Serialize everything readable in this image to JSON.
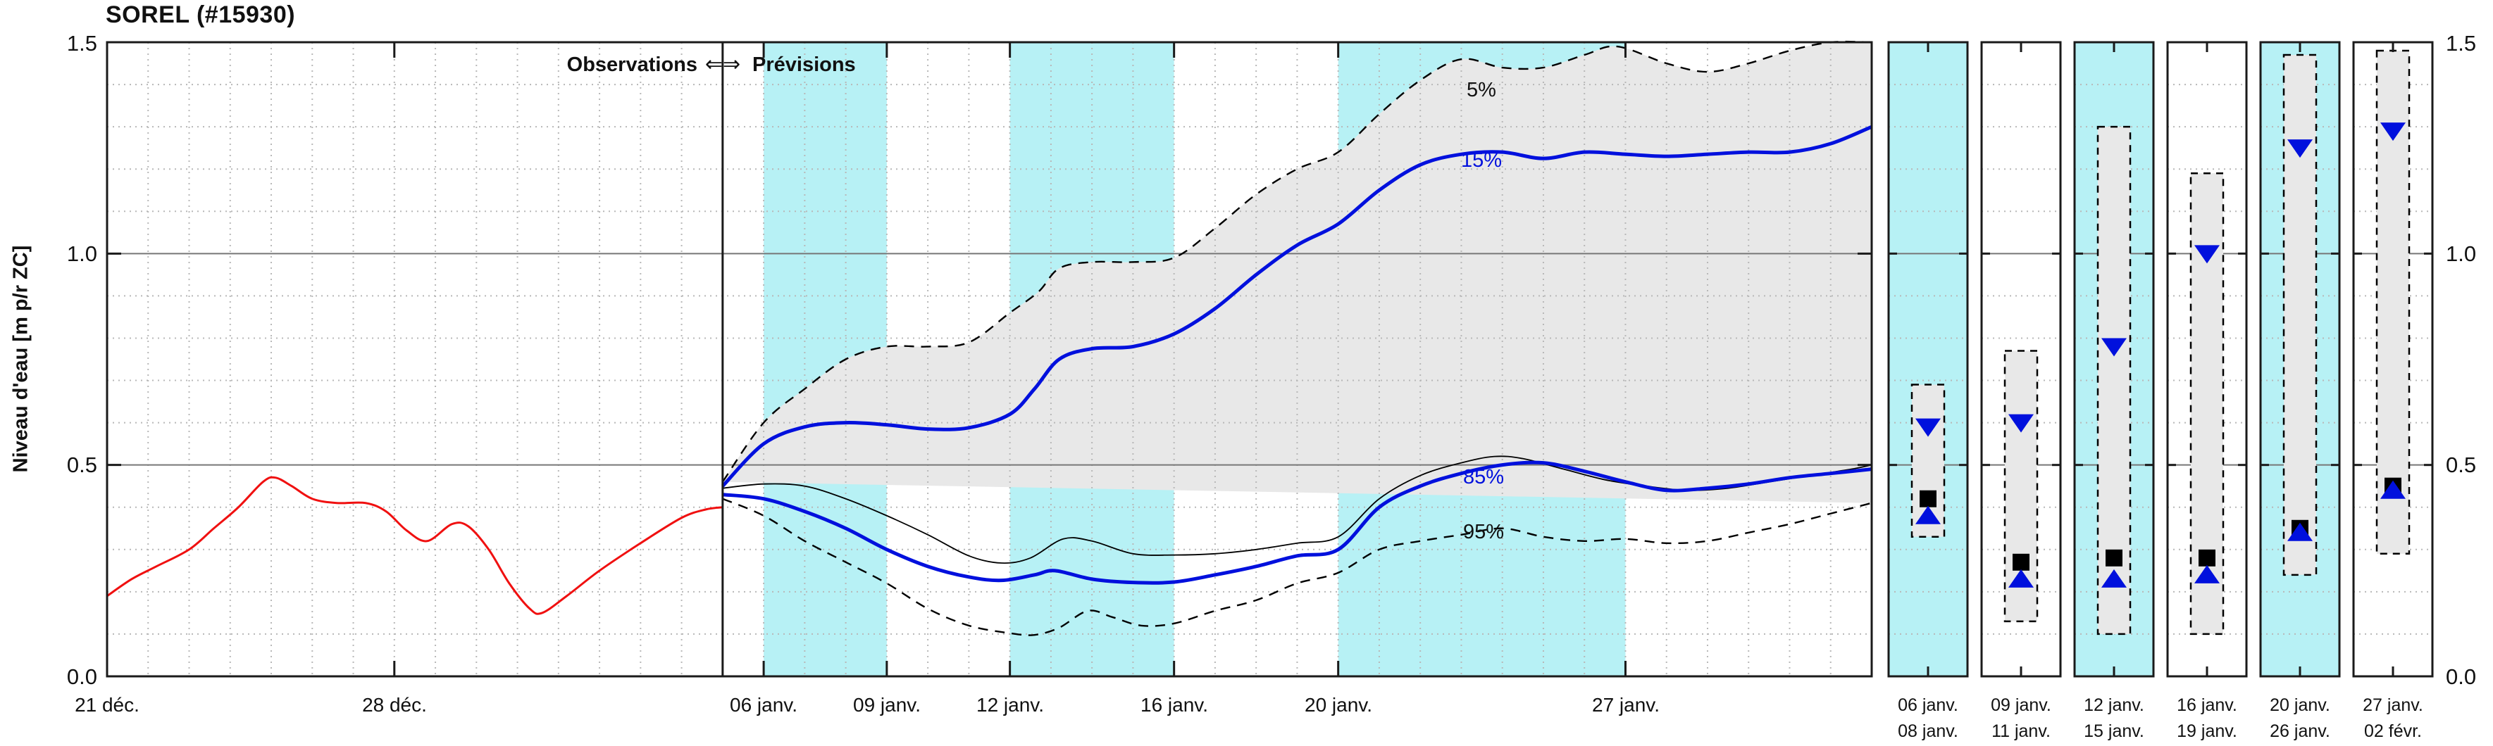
{
  "title": "SOREL (#15930)",
  "header": {
    "left": "Observations",
    "arrows": "⇐⇒",
    "right": "Prévisions"
  },
  "y_axis": {
    "label": "Niveau d'eau [m p/r ZC]",
    "ticks": [
      "0.0",
      "0.5",
      "1.0",
      "1.5"
    ],
    "min": 0.0,
    "max": 1.5
  },
  "curve_labels": {
    "p5": "5%",
    "p15": "15%",
    "p85": "85%",
    "p95": "95%"
  },
  "colors": {
    "observation": "#f01010",
    "quantile_blue": "#0010dd",
    "quantile_black": "#000000",
    "band_fill": "#e8e8e8",
    "highlight_fill": "#b7f1f5",
    "grid_minor": "#b8b8b8",
    "grid_major": "#777777",
    "axis": "#1a1a1a"
  },
  "chart_data": {
    "type": "line",
    "title": "SOREL (#15930)",
    "ylabel": "Niveau d'eau [m p/r ZC]",
    "ylim": [
      0.0,
      1.5
    ],
    "x_unit": "days since 21 déc.",
    "x_range_days": 43,
    "forecast_start_day": 15,
    "grid": "minor dotted 0.1 steps + daily vertical; solid lines at 0.5 and 1.0",
    "xticks": [
      {
        "day": 0,
        "label": "21 déc."
      },
      {
        "day": 7,
        "label": "28 déc."
      },
      {
        "day": 16,
        "label": "06 janv."
      },
      {
        "day": 19,
        "label": "09 janv."
      },
      {
        "day": 22,
        "label": "12 janv."
      },
      {
        "day": 26,
        "label": "16 janv."
      },
      {
        "day": 30,
        "label": "20 janv."
      },
      {
        "day": 37,
        "label": "27 janv."
      }
    ],
    "boundary_tick_days": [
      7,
      16,
      19,
      22,
      26,
      30,
      37
    ],
    "highlight_bands_days": [
      [
        16,
        19
      ],
      [
        22,
        26
      ],
      [
        30,
        37
      ]
    ],
    "uncertainty_band": {
      "upper": "5%",
      "lower": "95%"
    },
    "series": [
      {
        "name": "observations",
        "color": "#f01010",
        "style": "solid",
        "width": 3,
        "points": [
          [
            0,
            0.19
          ],
          [
            0.6,
            0.23
          ],
          [
            1.2,
            0.26
          ],
          [
            2,
            0.3
          ],
          [
            2.6,
            0.35
          ],
          [
            3.2,
            0.4
          ],
          [
            3.8,
            0.46
          ],
          [
            4.1,
            0.47
          ],
          [
            4.5,
            0.45
          ],
          [
            5,
            0.42
          ],
          [
            5.6,
            0.41
          ],
          [
            6.3,
            0.41
          ],
          [
            6.8,
            0.39
          ],
          [
            7.3,
            0.345
          ],
          [
            7.8,
            0.32
          ],
          [
            8.4,
            0.36
          ],
          [
            8.8,
            0.355
          ],
          [
            9.3,
            0.3
          ],
          [
            9.8,
            0.22
          ],
          [
            10.3,
            0.16
          ],
          [
            10.6,
            0.15
          ],
          [
            11.2,
            0.19
          ],
          [
            12,
            0.25
          ],
          [
            13,
            0.315
          ],
          [
            14,
            0.375
          ],
          [
            14.6,
            0.395
          ],
          [
            15,
            0.4
          ]
        ]
      },
      {
        "name": "5%",
        "color": "#000000",
        "style": "dashed",
        "width": 2.4,
        "points": [
          [
            15,
            0.46
          ],
          [
            16,
            0.6
          ],
          [
            17,
            0.68
          ],
          [
            18,
            0.75
          ],
          [
            19,
            0.78
          ],
          [
            20,
            0.78
          ],
          [
            21,
            0.79
          ],
          [
            22,
            0.86
          ],
          [
            22.7,
            0.91
          ],
          [
            23.2,
            0.965
          ],
          [
            24,
            0.98
          ],
          [
            25,
            0.98
          ],
          [
            26,
            0.99
          ],
          [
            27,
            1.06
          ],
          [
            28,
            1.14
          ],
          [
            29,
            1.2
          ],
          [
            30,
            1.24
          ],
          [
            31,
            1.33
          ],
          [
            32,
            1.41
          ],
          [
            33,
            1.46
          ],
          [
            34,
            1.44
          ],
          [
            35,
            1.44
          ],
          [
            36,
            1.47
          ],
          [
            36.8,
            1.49
          ],
          [
            38,
            1.45
          ],
          [
            39,
            1.43
          ],
          [
            40,
            1.45
          ],
          [
            41,
            1.48
          ],
          [
            42,
            1.5
          ],
          [
            43,
            1.5
          ]
        ]
      },
      {
        "name": "15%",
        "color": "#0010dd",
        "style": "solid",
        "width": 5,
        "points": [
          [
            15,
            0.45
          ],
          [
            16,
            0.55
          ],
          [
            17,
            0.59
          ],
          [
            18,
            0.6
          ],
          [
            19,
            0.595
          ],
          [
            20,
            0.585
          ],
          [
            21,
            0.588
          ],
          [
            22,
            0.62
          ],
          [
            22.6,
            0.68
          ],
          [
            23.2,
            0.75
          ],
          [
            24,
            0.775
          ],
          [
            25,
            0.78
          ],
          [
            26,
            0.81
          ],
          [
            27,
            0.87
          ],
          [
            28,
            0.95
          ],
          [
            29,
            1.02
          ],
          [
            30,
            1.07
          ],
          [
            31,
            1.15
          ],
          [
            32,
            1.21
          ],
          [
            33,
            1.235
          ],
          [
            34,
            1.24
          ],
          [
            35,
            1.225
          ],
          [
            36,
            1.24
          ],
          [
            37,
            1.235
          ],
          [
            38,
            1.23
          ],
          [
            39,
            1.235
          ],
          [
            40,
            1.24
          ],
          [
            41,
            1.24
          ],
          [
            42,
            1.26
          ],
          [
            43,
            1.3
          ]
        ]
      },
      {
        "name": "median",
        "color": "#000000",
        "style": "solid",
        "width": 1.8,
        "points": [
          [
            15,
            0.445
          ],
          [
            16,
            0.455
          ],
          [
            17,
            0.45
          ],
          [
            18,
            0.42
          ],
          [
            19,
            0.38
          ],
          [
            20,
            0.335
          ],
          [
            21,
            0.285
          ],
          [
            21.8,
            0.268
          ],
          [
            22.5,
            0.28
          ],
          [
            23.3,
            0.325
          ],
          [
            24,
            0.32
          ],
          [
            25,
            0.29
          ],
          [
            26,
            0.287
          ],
          [
            27,
            0.29
          ],
          [
            28,
            0.3
          ],
          [
            29,
            0.315
          ],
          [
            30,
            0.33
          ],
          [
            31,
            0.42
          ],
          [
            32,
            0.475
          ],
          [
            33,
            0.505
          ],
          [
            33.8,
            0.52
          ],
          [
            34.5,
            0.515
          ],
          [
            35.5,
            0.49
          ],
          [
            36.5,
            0.465
          ],
          [
            37.5,
            0.45
          ],
          [
            38.5,
            0.44
          ],
          [
            39.5,
            0.445
          ],
          [
            40.5,
            0.46
          ],
          [
            41.5,
            0.475
          ],
          [
            42.5,
            0.49
          ],
          [
            43,
            0.5
          ]
        ]
      },
      {
        "name": "85%",
        "color": "#0010dd",
        "style": "solid",
        "width": 5,
        "points": [
          [
            15,
            0.43
          ],
          [
            16,
            0.42
          ],
          [
            17,
            0.39
          ],
          [
            18,
            0.35
          ],
          [
            19,
            0.3
          ],
          [
            20,
            0.26
          ],
          [
            21,
            0.235
          ],
          [
            21.8,
            0.227
          ],
          [
            22.6,
            0.24
          ],
          [
            23.1,
            0.25
          ],
          [
            24,
            0.23
          ],
          [
            25,
            0.222
          ],
          [
            26,
            0.223
          ],
          [
            27,
            0.24
          ],
          [
            28,
            0.26
          ],
          [
            29,
            0.285
          ],
          [
            30,
            0.3
          ],
          [
            31,
            0.4
          ],
          [
            32,
            0.45
          ],
          [
            33,
            0.48
          ],
          [
            34,
            0.5
          ],
          [
            35,
            0.505
          ],
          [
            36,
            0.485
          ],
          [
            37,
            0.46
          ],
          [
            38,
            0.44
          ],
          [
            39,
            0.445
          ],
          [
            40,
            0.455
          ],
          [
            41,
            0.47
          ],
          [
            42,
            0.48
          ],
          [
            43,
            0.49
          ]
        ]
      },
      {
        "name": "95%",
        "color": "#000000",
        "style": "dashed",
        "width": 2.4,
        "points": [
          [
            15,
            0.42
          ],
          [
            16,
            0.38
          ],
          [
            17,
            0.32
          ],
          [
            18,
            0.27
          ],
          [
            19,
            0.22
          ],
          [
            20,
            0.16
          ],
          [
            21,
            0.12
          ],
          [
            22,
            0.102
          ],
          [
            22.6,
            0.098
          ],
          [
            23.2,
            0.115
          ],
          [
            23.9,
            0.155
          ],
          [
            24.5,
            0.14
          ],
          [
            25.2,
            0.12
          ],
          [
            26,
            0.125
          ],
          [
            27,
            0.155
          ],
          [
            28,
            0.18
          ],
          [
            29,
            0.22
          ],
          [
            30,
            0.245
          ],
          [
            31,
            0.3
          ],
          [
            32,
            0.32
          ],
          [
            33,
            0.335
          ],
          [
            34,
            0.35
          ],
          [
            35,
            0.33
          ],
          [
            36,
            0.32
          ],
          [
            37,
            0.325
          ],
          [
            38,
            0.315
          ],
          [
            39,
            0.32
          ],
          [
            40,
            0.34
          ],
          [
            41,
            0.36
          ],
          [
            42,
            0.385
          ],
          [
            43,
            0.41
          ]
        ]
      }
    ],
    "panels": [
      {
        "date_start": "06 janv.",
        "date_end": "08 janv.",
        "highlighted": true,
        "box_low": 0.33,
        "box_high": 0.69,
        "tri_down": 0.59,
        "square": 0.42,
        "tri_up": 0.38
      },
      {
        "date_start": "09 janv.",
        "date_end": "11 janv.",
        "highlighted": false,
        "box_low": 0.13,
        "box_high": 0.77,
        "tri_down": 0.6,
        "square": 0.27,
        "tri_up": 0.23
      },
      {
        "date_start": "12 janv.",
        "date_end": "15 janv.",
        "highlighted": true,
        "box_low": 0.1,
        "box_high": 1.3,
        "tri_down": 0.78,
        "square": 0.28,
        "tri_up": 0.23
      },
      {
        "date_start": "16 janv.",
        "date_end": "19 janv.",
        "highlighted": false,
        "box_low": 0.1,
        "box_high": 1.19,
        "tri_down": 1.0,
        "square": 0.28,
        "tri_up": 0.24
      },
      {
        "date_start": "20 janv.",
        "date_end": "26 janv.",
        "highlighted": true,
        "box_low": 0.24,
        "box_high": 1.47,
        "tri_down": 1.25,
        "square": 0.35,
        "tri_up": 0.34
      },
      {
        "date_start": "27 janv.",
        "date_end": "02 févr.",
        "highlighted": false,
        "box_low": 0.29,
        "box_high": 1.48,
        "tri_down": 1.29,
        "square": 0.45,
        "tri_up": 0.44
      }
    ]
  }
}
